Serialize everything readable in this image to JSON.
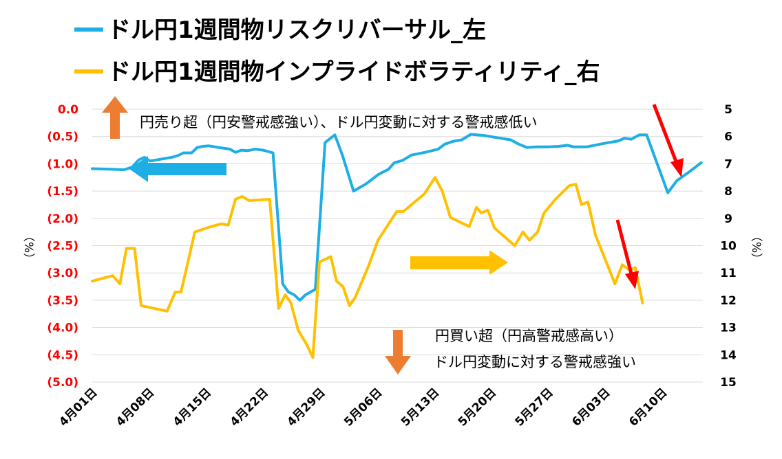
{
  "chart_data": {
    "type": "line",
    "legend": [
      {
        "label": "ドル円1週間物リスクリバーサル_左",
        "color": "#1EAEE6"
      },
      {
        "label": "ドル円1週間物インプライドボラティリティ_右",
        "color": "#FFC000"
      }
    ],
    "left_axis": {
      "ticks": [
        "0.0",
        "(0.5)",
        "(1.0)",
        "(1.5)",
        "(2.0)",
        "(2.5)",
        "(3.0)",
        "(3.5)",
        "(4.0)",
        "(4.5)",
        "(5.0)"
      ],
      "unit": "（%）",
      "ylim": [
        -5.0,
        0.0
      ],
      "tick_color": "#FF0000",
      "zero_color": "#000000"
    },
    "right_axis": {
      "ticks": [
        "5",
        "6",
        "7",
        "8",
        "9",
        "10",
        "11",
        "12",
        "13",
        "14",
        "15"
      ],
      "unit": "（%）",
      "ylim": [
        5,
        15
      ],
      "inverted": true
    },
    "x_axis": {
      "ticks": [
        "4月01日",
        "4月08日",
        "4月15日",
        "4月22日",
        "4月29日",
        "5月06日",
        "5月13日",
        "5月20日",
        "5月27日",
        "6月03日",
        "6月10日"
      ],
      "tick_day_index": [
        0,
        7,
        14,
        21,
        28,
        35,
        42,
        49,
        56,
        63,
        70
      ],
      "range_days": [
        0,
        75
      ]
    },
    "series": [
      {
        "name": "ドル円1週間物リスクリバーサル_左",
        "color": "#1EAEE6",
        "axis": "left",
        "points": [
          [
            0,
            -1.09
          ],
          [
            2.2,
            -1.1
          ],
          [
            3.9,
            -1.11
          ],
          [
            4.9,
            -1.06
          ],
          [
            5.7,
            -0.93
          ],
          [
            6.4,
            -0.88
          ],
          [
            7.1,
            -0.95
          ],
          [
            8.6,
            -0.91
          ],
          [
            9.8,
            -0.88
          ],
          [
            10.5,
            -0.85
          ],
          [
            11.2,
            -0.8
          ],
          [
            12.2,
            -0.8
          ],
          [
            12.9,
            -0.7
          ],
          [
            13.6,
            -0.68
          ],
          [
            14.3,
            -0.67
          ],
          [
            15.5,
            -0.7
          ],
          [
            16.9,
            -0.73
          ],
          [
            17.6,
            -0.79
          ],
          [
            18.3,
            -0.75
          ],
          [
            19.1,
            -0.76
          ],
          [
            20.0,
            -0.73
          ],
          [
            21.0,
            -0.75
          ],
          [
            22.2,
            -0.8
          ],
          [
            23.4,
            -3.2
          ],
          [
            24.1,
            -3.35
          ],
          [
            24.8,
            -3.4
          ],
          [
            25.5,
            -3.5
          ],
          [
            26.2,
            -3.4
          ],
          [
            27.4,
            -3.3
          ],
          [
            28.6,
            -0.61
          ],
          [
            29.8,
            -0.47
          ],
          [
            30.7,
            -0.83
          ],
          [
            32.1,
            -1.5
          ],
          [
            33.6,
            -1.37
          ],
          [
            35.2,
            -1.19
          ],
          [
            36.4,
            -1.1
          ],
          [
            37.1,
            -0.98
          ],
          [
            38.1,
            -0.94
          ],
          [
            39.2,
            -0.84
          ],
          [
            40.9,
            -0.79
          ],
          [
            42.5,
            -0.73
          ],
          [
            43.3,
            -0.64
          ],
          [
            44.3,
            -0.59
          ],
          [
            45.4,
            -0.56
          ],
          [
            46.5,
            -0.46
          ],
          [
            48.1,
            -0.48
          ],
          [
            49.7,
            -0.52
          ],
          [
            51.4,
            -0.56
          ],
          [
            52.4,
            -0.64
          ],
          [
            53.4,
            -0.7
          ],
          [
            54.6,
            -0.69
          ],
          [
            56.0,
            -0.69
          ],
          [
            57.3,
            -0.68
          ],
          [
            58.4,
            -0.66
          ],
          [
            59.1,
            -0.69
          ],
          [
            60.7,
            -0.69
          ],
          [
            61.7,
            -0.66
          ],
          [
            63.1,
            -0.62
          ],
          [
            64.6,
            -0.58
          ],
          [
            65.4,
            -0.53
          ],
          [
            66.2,
            -0.55
          ],
          [
            67.2,
            -0.47
          ],
          [
            68.1,
            -0.47
          ],
          [
            70.7,
            -1.53
          ],
          [
            71.8,
            -1.31
          ],
          [
            73.4,
            -1.14
          ],
          [
            74.8,
            -0.98
          ]
        ]
      },
      {
        "name": "ドル円1週間物インプライドボラティリティ_右",
        "color": "#FFC000",
        "axis": "right",
        "points": [
          [
            0,
            11.3
          ],
          [
            2.5,
            11.1
          ],
          [
            3.4,
            11.4
          ],
          [
            4.2,
            10.1
          ],
          [
            5.2,
            10.1
          ],
          [
            6.0,
            12.2
          ],
          [
            9.2,
            12.4
          ],
          [
            10.2,
            11.7
          ],
          [
            10.9,
            11.7
          ],
          [
            11.6,
            10.8
          ],
          [
            12.6,
            9.5
          ],
          [
            14.6,
            9.3
          ],
          [
            15.9,
            9.2
          ],
          [
            16.7,
            9.25
          ],
          [
            17.6,
            8.3
          ],
          [
            18.4,
            8.2
          ],
          [
            19.3,
            8.35
          ],
          [
            21.8,
            8.3
          ],
          [
            22.9,
            12.3
          ],
          [
            23.7,
            11.8
          ],
          [
            24.4,
            12.1
          ],
          [
            25.3,
            13.1
          ],
          [
            26.3,
            13.6
          ],
          [
            27.1,
            14.1
          ],
          [
            27.9,
            10.6
          ],
          [
            29.3,
            10.4
          ],
          [
            30.0,
            11.3
          ],
          [
            30.8,
            11.5
          ],
          [
            31.6,
            12.2
          ],
          [
            32.3,
            11.9
          ],
          [
            34.0,
            10.7
          ],
          [
            35.1,
            9.8
          ],
          [
            36.2,
            9.3
          ],
          [
            37.4,
            8.75
          ],
          [
            38.2,
            8.75
          ],
          [
            40.8,
            8.1
          ],
          [
            42.1,
            7.5
          ],
          [
            43.0,
            8.0
          ],
          [
            44.0,
            8.97
          ],
          [
            46.3,
            9.3
          ],
          [
            47.2,
            8.6
          ],
          [
            47.8,
            8.8
          ],
          [
            48.6,
            8.7
          ],
          [
            49.4,
            9.35
          ],
          [
            51.9,
            10.0
          ],
          [
            52.9,
            9.5
          ],
          [
            53.7,
            9.8
          ],
          [
            54.7,
            9.5
          ],
          [
            55.5,
            8.8
          ],
          [
            56.9,
            8.3
          ],
          [
            58.6,
            7.8
          ],
          [
            59.4,
            7.75
          ],
          [
            60.1,
            8.5
          ],
          [
            60.9,
            8.4
          ],
          [
            61.8,
            9.6
          ],
          [
            64.2,
            11.4
          ],
          [
            65.1,
            10.7
          ],
          [
            66.0,
            10.9
          ],
          [
            66.7,
            10.8
          ],
          [
            67.6,
            12.1
          ]
        ]
      }
    ],
    "annotations": {
      "top_text": "円売り超（円安警戒感強い）、ドル円変動に対する警戒感低い",
      "bottom_text_1": "円買い超（円高警戒感高い）",
      "bottom_text_2": "ドル円変動に対する警戒感強い",
      "arrow_colors": {
        "orange": "#ED7D31",
        "blue": "#1EAEE6",
        "yellow": "#FFC000",
        "red": "#FF0000"
      }
    },
    "grid": "horizontal"
  }
}
